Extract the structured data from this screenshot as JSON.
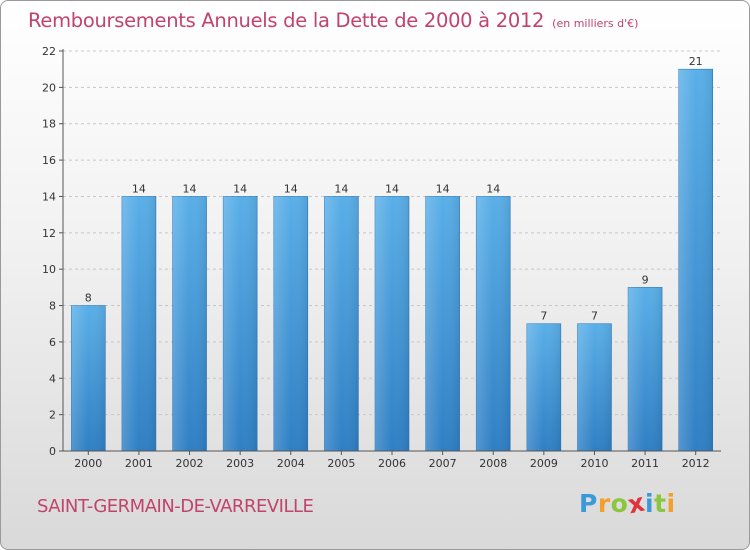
{
  "chart_data": {
    "type": "bar",
    "title": "Remboursements Annuels de la Dette de 2000 à 2012",
    "subtitle": "(en milliers d'€)",
    "categories": [
      "2000",
      "2001",
      "2002",
      "2003",
      "2004",
      "2005",
      "2006",
      "2007",
      "2008",
      "2009",
      "2010",
      "2011",
      "2012"
    ],
    "values": [
      8,
      14,
      14,
      14,
      14,
      14,
      14,
      14,
      14,
      7,
      7,
      9,
      21
    ],
    "ylim": [
      0,
      22
    ],
    "yticks": [
      0,
      2,
      4,
      6,
      8,
      10,
      12,
      14,
      16,
      18,
      20,
      22
    ],
    "grid": true,
    "bar_color": "#4a9fe0",
    "value_labels": true
  },
  "commune": "SAINT-GERMAIN-DE-VARREVILLE",
  "logo": {
    "letters": [
      "P",
      "r",
      "o",
      "x",
      "i",
      "t",
      "i"
    ],
    "colors": [
      "#3a9ad9",
      "#f3a02a",
      "#8cc63f",
      "#e0323c",
      "#3a9ad9",
      "#8cc63f",
      "#f3a02a"
    ]
  },
  "title_color": "#c2436c"
}
